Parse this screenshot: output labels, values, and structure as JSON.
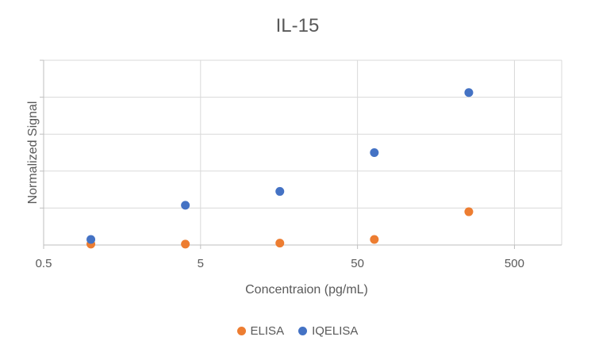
{
  "chart_data": {
    "type": "scatter",
    "title": "IL-15",
    "xlabel": "Concentraion (pg/mL)",
    "ylabel": "Normalized Signal",
    "x_scale": "log",
    "xlim": [
      0.5,
      1000
    ],
    "ylim": [
      0,
      100
    ],
    "x_ticks": [
      0.5,
      5,
      50,
      500
    ],
    "x_tick_labels": [
      "0.5",
      "5",
      "50",
      "500"
    ],
    "grid": true,
    "legend_position": "bottom",
    "series": [
      {
        "name": "ELISA",
        "color": "#ED7D31",
        "points": [
          {
            "x": 1,
            "y": 0.5
          },
          {
            "x": 4,
            "y": 0.5
          },
          {
            "x": 16,
            "y": 1
          },
          {
            "x": 64,
            "y": 3
          },
          {
            "x": 256,
            "y": 18
          }
        ]
      },
      {
        "name": "IQELISA",
        "color": "#4472C4",
        "points": [
          {
            "x": 1,
            "y": 3
          },
          {
            "x": 4,
            "y": 21.5
          },
          {
            "x": 16,
            "y": 29
          },
          {
            "x": 64,
            "y": 50
          },
          {
            "x": 256,
            "y": 82.5
          }
        ]
      }
    ]
  }
}
